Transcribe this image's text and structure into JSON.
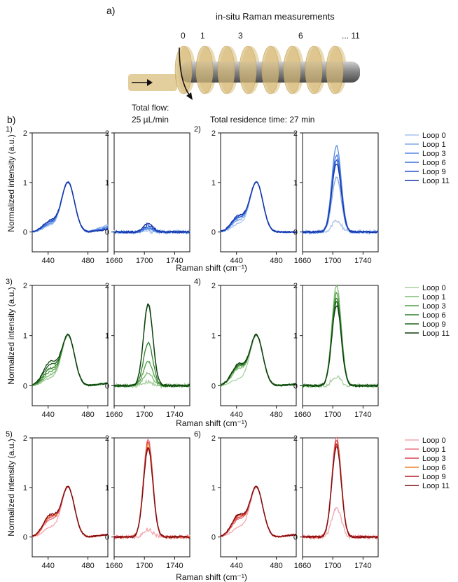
{
  "schematic": {
    "panel_label": "a)",
    "title": "in-situ Raman measurements",
    "loop_labels": [
      "0",
      "1",
      "3",
      "6",
      "... 11"
    ],
    "flow_label": "Total flow:",
    "flow_value": "25 µL/min",
    "residence_label": "Total residence time: 27 min",
    "tube_color": "#d9be7c",
    "rod_color": "#8a8a8a"
  },
  "panel_b_label": "b)",
  "axes_text": {
    "ylabel": "Normalized intensity (a.u.)",
    "xlabel": "Raman shift (cm⁻¹)"
  },
  "legends": [
    {
      "colors": [
        "#a9c3ee",
        "#7fa6ea",
        "#5589e6",
        "#3a6fdc",
        "#2452c8",
        "#1534a6"
      ],
      "labels": [
        "Loop 0",
        "Loop 1",
        "Loop 3",
        "Loop 6",
        "Loop 9",
        "Loop 11"
      ]
    },
    {
      "colors": [
        "#a8cfa0",
        "#7cba70",
        "#4f9e45",
        "#2f7f2b",
        "#1c611c",
        "#0f3f0f"
      ],
      "labels": [
        "Loop 0",
        "Loop 1",
        "Loop 3",
        "Loop 6",
        "Loop 9",
        "Loop 11"
      ]
    },
    {
      "colors": [
        "#f2a6ae",
        "#e8707e",
        "#d9404f",
        "#f07e2f",
        "#b2151f",
        "#7a0e12"
      ],
      "labels": [
        "Loop 0",
        "Loop 1",
        "Loop 3",
        "Loop 6",
        "Loop 9",
        "Loop 11"
      ]
    }
  ],
  "chart_data": [
    {
      "type": "line",
      "panel": "1)",
      "region": "low",
      "xlim": [
        424,
        500
      ],
      "ylim": [
        -0.4,
        2
      ],
      "xticks": [
        440,
        480
      ],
      "yticks": [
        0,
        1,
        2
      ],
      "peak_x": 460,
      "series": [
        {
          "name": "Loop 0",
          "peak": 1.0,
          "shoulder": 0.12,
          "tail": 0.15
        },
        {
          "name": "Loop 1",
          "peak": 1.0,
          "shoulder": 0.14,
          "tail": 0.13
        },
        {
          "name": "Loop 3",
          "peak": 1.0,
          "shoulder": 0.16,
          "tail": 0.1
        },
        {
          "name": "Loop 6",
          "peak": 1.0,
          "shoulder": 0.18,
          "tail": 0.08
        },
        {
          "name": "Loop 9",
          "peak": 1.0,
          "shoulder": 0.2,
          "tail": 0.06
        },
        {
          "name": "Loop 11",
          "peak": 1.0,
          "shoulder": 0.22,
          "tail": 0.05
        }
      ]
    },
    {
      "type": "line",
      "panel": "1)",
      "region": "high",
      "xlim": [
        1660,
        1760
      ],
      "ylim": [
        -0.4,
        2
      ],
      "xticks": [
        1660,
        1700,
        1740
      ],
      "yticks": [
        0,
        1,
        2
      ],
      "peak_x": 1705,
      "series": [
        {
          "name": "Loop 0",
          "peak": 0.02
        },
        {
          "name": "Loop 1",
          "peak": 0.05
        },
        {
          "name": "Loop 3",
          "peak": 0.08
        },
        {
          "name": "Loop 6",
          "peak": 0.1
        },
        {
          "name": "Loop 9",
          "peak": 0.13
        },
        {
          "name": "Loop 11",
          "peak": 0.18
        }
      ]
    },
    {
      "type": "line",
      "panel": "2)",
      "region": "low",
      "xlim": [
        424,
        500
      ],
      "ylim": [
        -0.4,
        2
      ],
      "xticks": [
        440,
        480
      ],
      "yticks": [
        0,
        1,
        2
      ],
      "peak_x": 460,
      "series": [
        {
          "name": "Loop 0",
          "peak": 1.0,
          "shoulder": 0.15,
          "tail": 0.0
        },
        {
          "name": "Loop 1",
          "peak": 1.0,
          "shoulder": 0.22,
          "tail": 0.0
        },
        {
          "name": "Loop 3",
          "peak": 1.0,
          "shoulder": 0.26,
          "tail": 0.0
        },
        {
          "name": "Loop 6",
          "peak": 1.0,
          "shoulder": 0.28,
          "tail": 0.0
        },
        {
          "name": "Loop 9",
          "peak": 1.0,
          "shoulder": 0.3,
          "tail": 0.0
        },
        {
          "name": "Loop 11",
          "peak": 1.0,
          "shoulder": 0.32,
          "tail": 0.0
        }
      ]
    },
    {
      "type": "line",
      "panel": "2)",
      "region": "high",
      "xlim": [
        1660,
        1760
      ],
      "ylim": [
        -0.4,
        2
      ],
      "xticks": [
        1660,
        1700,
        1740
      ],
      "yticks": [
        0,
        1,
        2
      ],
      "peak_x": 1705,
      "series": [
        {
          "name": "Loop 0",
          "peak": 0.22
        },
        {
          "name": "Loop 1",
          "peak": 1.1
        },
        {
          "name": "Loop 3",
          "peak": 1.75
        },
        {
          "name": "Loop 6",
          "peak": 1.55
        },
        {
          "name": "Loop 9",
          "peak": 1.45
        },
        {
          "name": "Loop 11",
          "peak": 1.38
        }
      ]
    },
    {
      "type": "line",
      "panel": "3)",
      "region": "low",
      "xlim": [
        424,
        500
      ],
      "ylim": [
        -0.4,
        2
      ],
      "xticks": [
        440,
        480
      ],
      "yticks": [
        0,
        1,
        2
      ],
      "peak_x": 460,
      "series": [
        {
          "name": "Loop 0",
          "peak": 1.0,
          "shoulder": 0.14,
          "tail": 0.05
        },
        {
          "name": "Loop 1",
          "peak": 1.0,
          "shoulder": 0.2,
          "tail": 0.05
        },
        {
          "name": "Loop 3",
          "peak": 1.0,
          "shoulder": 0.26,
          "tail": 0.05
        },
        {
          "name": "Loop 6",
          "peak": 1.0,
          "shoulder": 0.32,
          "tail": 0.05
        },
        {
          "name": "Loop 9",
          "peak": 1.0,
          "shoulder": 0.4,
          "tail": 0.05
        },
        {
          "name": "Loop 11",
          "peak": 1.0,
          "shoulder": 0.46,
          "tail": 0.05
        }
      ]
    },
    {
      "type": "line",
      "panel": "3)",
      "region": "high",
      "xlim": [
        1660,
        1760
      ],
      "ylim": [
        -0.4,
        2
      ],
      "xticks": [
        1660,
        1700,
        1740
      ],
      "yticks": [
        0,
        1,
        2
      ],
      "peak_x": 1705,
      "series": [
        {
          "name": "Loop 0",
          "peak": 0.08
        },
        {
          "name": "Loop 1",
          "peak": 0.25
        },
        {
          "name": "Loop 3",
          "peak": 0.48
        },
        {
          "name": "Loop 6",
          "peak": 0.85
        },
        {
          "name": "Loop 9",
          "peak": 1.6
        },
        {
          "name": "Loop 11",
          "peak": 1.64
        }
      ]
    },
    {
      "type": "line",
      "panel": "4)",
      "region": "low",
      "xlim": [
        424,
        500
      ],
      "ylim": [
        -0.4,
        2
      ],
      "xticks": [
        440,
        480
      ],
      "yticks": [
        0,
        1,
        2
      ],
      "peak_x": 460,
      "series": [
        {
          "name": "Loop 0",
          "peak": 1.0,
          "shoulder": 0.12,
          "tail": 0.03
        },
        {
          "name": "Loop 1",
          "peak": 1.0,
          "shoulder": 0.32,
          "tail": 0.03
        },
        {
          "name": "Loop 3",
          "peak": 1.0,
          "shoulder": 0.36,
          "tail": 0.03
        },
        {
          "name": "Loop 6",
          "peak": 1.0,
          "shoulder": 0.38,
          "tail": 0.03
        },
        {
          "name": "Loop 9",
          "peak": 1.0,
          "shoulder": 0.4,
          "tail": 0.03
        },
        {
          "name": "Loop 11",
          "peak": 1.0,
          "shoulder": 0.42,
          "tail": 0.03
        }
      ]
    },
    {
      "type": "line",
      "panel": "4)",
      "region": "high",
      "xlim": [
        1660,
        1760
      ],
      "ylim": [
        -0.4,
        2
      ],
      "xticks": [
        1660,
        1700,
        1740
      ],
      "yticks": [
        0,
        1,
        2
      ],
      "peak_x": 1705,
      "series": [
        {
          "name": "Loop 0",
          "peak": 0.18
        },
        {
          "name": "Loop 1",
          "peak": 2.0
        },
        {
          "name": "Loop 3",
          "peak": 1.85
        },
        {
          "name": "Loop 6",
          "peak": 1.75
        },
        {
          "name": "Loop 9",
          "peak": 1.68
        },
        {
          "name": "Loop 11",
          "peak": 1.6
        }
      ]
    },
    {
      "type": "line",
      "panel": "5)",
      "region": "low",
      "xlim": [
        424,
        500
      ],
      "ylim": [
        -0.4,
        2
      ],
      "xticks": [
        440,
        480
      ],
      "yticks": [
        0,
        1,
        2
      ],
      "peak_x": 460,
      "series": [
        {
          "name": "Loop 0",
          "peak": 1.0,
          "shoulder": 0.18,
          "tail": 0.05
        },
        {
          "name": "Loop 1",
          "peak": 1.0,
          "shoulder": 0.34,
          "tail": 0.05
        },
        {
          "name": "Loop 3",
          "peak": 1.0,
          "shoulder": 0.38,
          "tail": 0.05
        },
        {
          "name": "Loop 6",
          "peak": 1.0,
          "shoulder": 0.4,
          "tail": 0.05
        },
        {
          "name": "Loop 9",
          "peak": 1.0,
          "shoulder": 0.42,
          "tail": 0.05
        },
        {
          "name": "Loop 11",
          "peak": 1.0,
          "shoulder": 0.44,
          "tail": 0.05
        }
      ]
    },
    {
      "type": "line",
      "panel": "5)",
      "region": "high",
      "xlim": [
        1660,
        1760
      ],
      "ylim": [
        -0.4,
        2
      ],
      "xticks": [
        1660,
        1700,
        1740
      ],
      "yticks": [
        0,
        1,
        2
      ],
      "peak_x": 1705,
      "series": [
        {
          "name": "Loop 0",
          "peak": 0.15
        },
        {
          "name": "Loop 1",
          "peak": 1.98
        },
        {
          "name": "Loop 3",
          "peak": 1.92
        },
        {
          "name": "Loop 6",
          "peak": 1.88
        },
        {
          "name": "Loop 9",
          "peak": 1.82
        },
        {
          "name": "Loop 11",
          "peak": 1.78
        }
      ]
    },
    {
      "type": "line",
      "panel": "6)",
      "region": "low",
      "xlim": [
        424,
        500
      ],
      "ylim": [
        -0.4,
        2
      ],
      "xticks": [
        440,
        480
      ],
      "yticks": [
        0,
        1,
        2
      ],
      "peak_x": 460,
      "series": [
        {
          "name": "Loop 0",
          "peak": 1.0,
          "shoulder": 0.18,
          "tail": 0.05
        },
        {
          "name": "Loop 1",
          "peak": 1.0,
          "shoulder": 0.34,
          "tail": 0.05
        },
        {
          "name": "Loop 3",
          "peak": 1.0,
          "shoulder": 0.38,
          "tail": 0.05
        },
        {
          "name": "Loop 6",
          "peak": 1.0,
          "shoulder": 0.4,
          "tail": 0.05
        },
        {
          "name": "Loop 9",
          "peak": 1.0,
          "shoulder": 0.42,
          "tail": 0.05
        },
        {
          "name": "Loop 11",
          "peak": 1.0,
          "shoulder": 0.44,
          "tail": 0.05
        }
      ]
    },
    {
      "type": "line",
      "panel": "6)",
      "region": "high",
      "xlim": [
        1660,
        1760
      ],
      "ylim": [
        -0.4,
        2
      ],
      "xticks": [
        1660,
        1700,
        1740
      ],
      "yticks": [
        0,
        1,
        2
      ],
      "peak_x": 1705,
      "series": [
        {
          "name": "Loop 0",
          "peak": 0.6
        },
        {
          "name": "Loop 1",
          "peak": 2.0
        },
        {
          "name": "Loop 3",
          "peak": 1.95
        },
        {
          "name": "Loop 6",
          "peak": 1.9
        },
        {
          "name": "Loop 9",
          "peak": 1.86
        },
        {
          "name": "Loop 11",
          "peak": 1.82
        }
      ]
    }
  ]
}
